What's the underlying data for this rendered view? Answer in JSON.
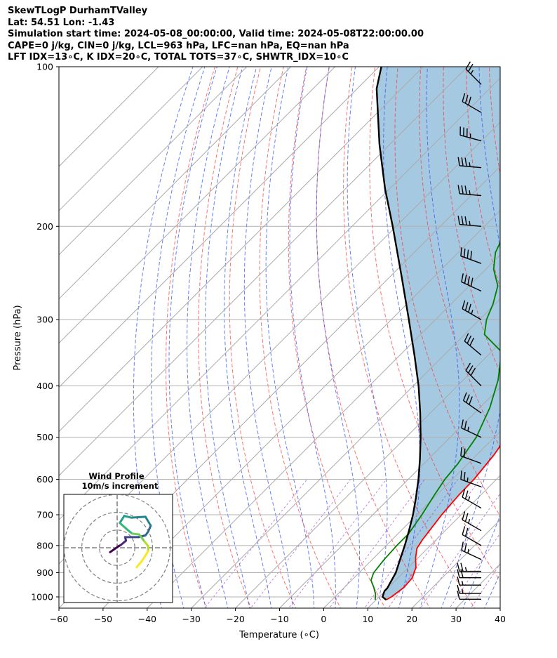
{
  "header": {
    "lines": [
      "SkewTLogP DurhamTValley",
      "Lat: 54.51   Lon: -1.43",
      "Simulation start time: 2024-05-08_00:00:00, Valid time: 2024-05-08T22:00:00.00",
      "CAPE=0 j/kg, CIN=0 j/kg, LCL=963 hPa, LFC=nan hPa, EQ=nan hPa",
      "LFT IDX=13∘C, K IDX=20∘C, TOTAL TOTS=37∘C, SHWTR_IDX=10∘C"
    ]
  },
  "chart_data": {
    "type": "line",
    "subtype": "skew-T log-P diagram",
    "xlabel": "Temperature (∘C)",
    "ylabel": "Pressure (hPa)",
    "xlim": [
      -60,
      40
    ],
    "ylim_hPa": [
      1050,
      100
    ],
    "y_scale": "log",
    "x_ticks": [
      "−60",
      "−50",
      "−40",
      "−30",
      "−20",
      "−10",
      "0",
      "10",
      "20",
      "30",
      "40"
    ],
    "y_ticks": [
      "1000",
      "900",
      "800",
      "700",
      "600",
      "500",
      "400",
      "300",
      "200",
      "100"
    ],
    "grid": true,
    "series": [
      {
        "role": "temperature",
        "color": "#ff0000",
        "points": [
          [
            12.3,
            1013
          ],
          [
            12.8,
            1000
          ],
          [
            13.5,
            960
          ],
          [
            13.2,
            920
          ],
          [
            11.7,
            880
          ],
          [
            9.5,
            845
          ],
          [
            7.6,
            810
          ],
          [
            6.9,
            780
          ],
          [
            5.6,
            700
          ],
          [
            5.0,
            640
          ],
          [
            4.9,
            600
          ],
          [
            3.9,
            540
          ],
          [
            2.7,
            500
          ],
          [
            0.6,
            450
          ],
          [
            -2.6,
            400
          ],
          [
            -6.5,
            350
          ],
          [
            -10.9,
            300
          ],
          [
            -14.9,
            262
          ],
          [
            -19.8,
            237
          ],
          [
            -24.5,
            212
          ],
          [
            -29.8,
            190
          ],
          [
            -35.0,
            175
          ],
          [
            -40.2,
            163
          ],
          [
            -44.8,
            150
          ],
          [
            -48.2,
            140
          ],
          [
            -51.8,
            132
          ],
          [
            -55.6,
            123
          ],
          [
            -58.3,
            115
          ],
          [
            -60.8,
            108
          ],
          [
            -63.6,
            100
          ]
        ]
      },
      {
        "role": "dewpoint",
        "color": "#008000",
        "points": [
          [
            9.8,
            1013
          ],
          [
            8.7,
            990
          ],
          [
            6.7,
            960
          ],
          [
            4.4,
            930
          ],
          [
            3.3,
            900
          ],
          [
            2.7,
            850
          ],
          [
            2.4,
            800
          ],
          [
            2.4,
            760
          ],
          [
            1.1,
            700
          ],
          [
            -0.6,
            640
          ],
          [
            -1.7,
            600
          ],
          [
            -2.3,
            560
          ],
          [
            -4.1,
            500
          ],
          [
            -7.7,
            440
          ],
          [
            -12.1,
            390
          ],
          [
            -17.7,
            345
          ],
          [
            -25.5,
            320
          ],
          [
            -28.4,
            300
          ],
          [
            -30.5,
            280
          ],
          [
            -33.5,
            259
          ],
          [
            -38.2,
            241
          ],
          [
            -41.6,
            224
          ],
          [
            -43.6,
            208
          ],
          [
            -46.1,
            194
          ],
          [
            -48.2,
            182
          ],
          [
            -48.3,
            168
          ],
          [
            -47.6,
            156
          ],
          [
            -51.6,
            140
          ],
          [
            -60.8,
            123
          ],
          [
            -65.7,
            100
          ]
        ]
      },
      {
        "role": "parcel",
        "color": "#000000",
        "points": [
          [
            12.3,
            1013
          ],
          [
            10.8,
            1000
          ],
          [
            9.9,
            975
          ],
          [
            9.9,
            963
          ],
          [
            8.3,
            900
          ],
          [
            6.3,
            850
          ],
          [
            4.2,
            800
          ],
          [
            1.8,
            750
          ],
          [
            -0.9,
            700
          ],
          [
            -4.1,
            650
          ],
          [
            -7.7,
            600
          ],
          [
            -11.9,
            550
          ],
          [
            -16.7,
            500
          ],
          [
            -22.3,
            450
          ],
          [
            -28.8,
            400
          ],
          [
            -36.7,
            350
          ],
          [
            -46.0,
            300
          ],
          [
            -57.1,
            250
          ],
          [
            -70.8,
            200
          ],
          [
            -81.0,
            170
          ],
          [
            -92.4,
            140
          ],
          [
            -105.6,
            110
          ],
          [
            -109.5,
            100
          ]
        ]
      }
    ],
    "shaded_region": "area between temperature and parcel profiles",
    "reference_lines": [
      "dry adiabats",
      "moist adiabats",
      "mixing ratio lines"
    ],
    "wind_barbs": [
      {
        "p": 1010,
        "speed_kt": 10,
        "dir_deg": 270
      },
      {
        "p": 985,
        "speed_kt": 15,
        "dir_deg": 270
      },
      {
        "p": 950,
        "speed_kt": 15,
        "dir_deg": 270
      },
      {
        "p": 920,
        "speed_kt": 20,
        "dir_deg": 270
      },
      {
        "p": 895,
        "speed_kt": 25,
        "dir_deg": 270
      },
      {
        "p": 850,
        "speed_kt": 25,
        "dir_deg": 295
      },
      {
        "p": 800,
        "speed_kt": 20,
        "dir_deg": 300
      },
      {
        "p": 750,
        "speed_kt": 25,
        "dir_deg": 300
      },
      {
        "p": 680,
        "speed_kt": 25,
        "dir_deg": 300
      },
      {
        "p": 620,
        "speed_kt": 25,
        "dir_deg": 290
      },
      {
        "p": 560,
        "speed_kt": 20,
        "dir_deg": 290
      },
      {
        "p": 500,
        "speed_kt": 25,
        "dir_deg": 295
      },
      {
        "p": 450,
        "speed_kt": 30,
        "dir_deg": 305
      },
      {
        "p": 400,
        "speed_kt": 30,
        "dir_deg": 315
      },
      {
        "p": 350,
        "speed_kt": 30,
        "dir_deg": 310
      },
      {
        "p": 300,
        "speed_kt": 35,
        "dir_deg": 300
      },
      {
        "p": 265,
        "speed_kt": 40,
        "dir_deg": 295
      },
      {
        "p": 235,
        "speed_kt": 40,
        "dir_deg": 290
      },
      {
        "p": 200,
        "speed_kt": 35,
        "dir_deg": 275
      },
      {
        "p": 175,
        "speed_kt": 35,
        "dir_deg": 275
      },
      {
        "p": 155,
        "speed_kt": 35,
        "dir_deg": 275
      },
      {
        "p": 138,
        "speed_kt": 35,
        "dir_deg": 285
      },
      {
        "p": 122,
        "speed_kt": 30,
        "dir_deg": 300
      },
      {
        "p": 108,
        "speed_kt": 25,
        "dir_deg": 315
      }
    ],
    "inset": {
      "title_line1": "Wind Profile",
      "title_line2": "10m/s increment",
      "type": "hodograph",
      "hodograph_points": [
        [
          -0.8,
          -0.5
        ],
        [
          0.2,
          0.2
        ],
        [
          0.4,
          0.3
        ],
        [
          1.0,
          0.8
        ],
        [
          0.9,
          1.2
        ],
        [
          2.4,
          1.2
        ],
        [
          3.2,
          1.4
        ],
        [
          3.5,
          1.8
        ],
        [
          3.8,
          2.5
        ],
        [
          3.2,
          3.5
        ],
        [
          1.6,
          3.4
        ],
        [
          0.8,
          3.6
        ],
        [
          0.3,
          2.8
        ],
        [
          1.2,
          2.0
        ],
        [
          1.7,
          1.6
        ],
        [
          2.5,
          1.5
        ],
        [
          3.1,
          0.7
        ],
        [
          3.5,
          0.2
        ],
        [
          3.5,
          -0.4
        ],
        [
          2.8,
          -1.5
        ],
        [
          2.2,
          -2.2
        ]
      ],
      "colormap": "viridis"
    }
  }
}
